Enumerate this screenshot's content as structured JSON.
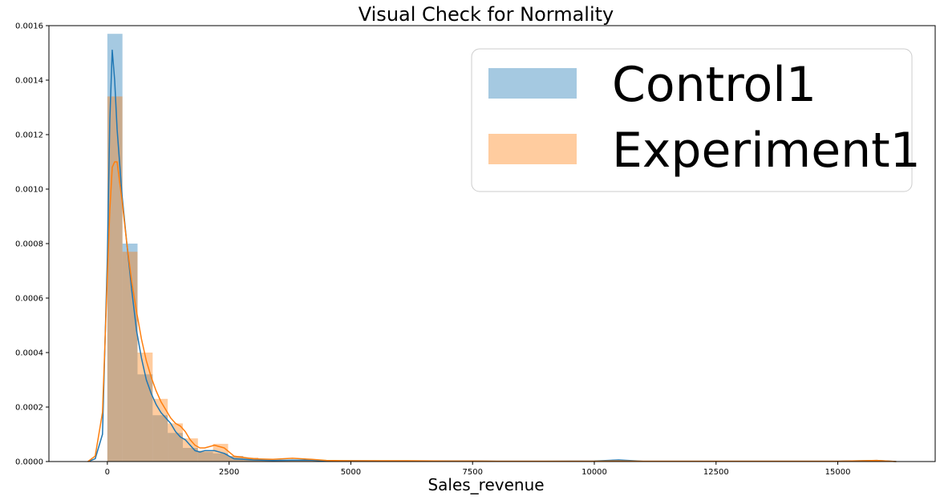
{
  "chart_data": {
    "type": "histogram",
    "title": "Visual Check for Normality",
    "xlabel": "Sales_revenue",
    "ylabel": "",
    "xlim": [
      -1200,
      17000
    ],
    "ylim": [
      0,
      0.0016
    ],
    "xticks": [
      0,
      2500,
      5000,
      7500,
      10000,
      12500,
      15000
    ],
    "yticks": [
      0.0,
      0.0002,
      0.0004,
      0.0006,
      0.0008,
      0.001,
      0.0012,
      0.0014,
      0.0016
    ],
    "ytick_labels": [
      "0.0000",
      "0.0002",
      "0.0004",
      "0.0006",
      "0.0008",
      "0.0010",
      "0.0012",
      "0.0014",
      "0.0016"
    ],
    "bin_width": 310,
    "bin_start": 0,
    "legend_position": "upper-right",
    "grid": false,
    "series": [
      {
        "name": "Control1",
        "color": "#1f77b4",
        "fill_color": "#a6c9e2",
        "hist": [
          0.00157,
          0.0008,
          0.00032,
          0.00017,
          0.000105,
          5e-05,
          3.5e-05,
          3e-05,
          2e-05,
          1.2e-05,
          8e-06,
          5e-06,
          4e-06,
          5e-06,
          3e-06,
          2e-06,
          2e-06,
          2e-06,
          2e-06,
          1e-06,
          1e-06,
          1e-06,
          1e-06,
          1e-06,
          1e-06,
          1e-06,
          1e-06,
          1e-06,
          1e-06,
          1e-06,
          1e-06,
          1e-06,
          1e-06,
          1e-06,
          2e-06,
          1e-06,
          1e-06,
          1e-06,
          1e-06,
          1e-06,
          1e-06,
          1e-06,
          1e-06,
          1e-06,
          1e-06,
          1e-06,
          1e-06,
          1e-06,
          1e-06,
          1e-06,
          1e-06,
          2e-06
        ],
        "kde_x": [
          -400,
          -250,
          -100,
          0,
          50,
          100,
          150,
          200,
          300,
          400,
          500,
          600,
          700,
          800,
          900,
          1000,
          1100,
          1200,
          1300,
          1400,
          1500,
          1600,
          1700,
          1800,
          1900,
          2000,
          2200,
          2400,
          2600,
          2800,
          3000,
          3400,
          3800,
          4200,
          4500,
          5000,
          6000,
          7000,
          7500,
          8000,
          9000,
          10000,
          10500,
          11000,
          12000,
          13000,
          14000,
          15000,
          15800,
          16200
        ],
        "kde_y": [
          0,
          1e-05,
          0.0001,
          0.00075,
          0.00125,
          0.00151,
          0.0014,
          0.00122,
          0.00098,
          0.0008,
          0.00063,
          0.00048,
          0.00038,
          0.0003,
          0.00025,
          0.00021,
          0.00018,
          0.00016,
          0.00014,
          0.00011,
          9e-05,
          8e-05,
          6e-05,
          4e-05,
          3.5e-05,
          4e-05,
          4e-05,
          3e-05,
          1e-05,
          8e-06,
          6e-06,
          4e-06,
          5e-06,
          5e-06,
          2e-06,
          3e-06,
          2e-06,
          2e-06,
          2e-06,
          1e-06,
          1e-06,
          2e-06,
          6e-06,
          1e-06,
          1e-06,
          1e-06,
          1e-06,
          1e-06,
          4e-06,
          0.0
        ]
      },
      {
        "name": "Experiment1",
        "color": "#ff7f0e",
        "fill_color": "#ffc99c",
        "hist": [
          0.00134,
          0.00077,
          0.0004,
          0.00023,
          0.00014,
          8.5e-05,
          4e-05,
          6.5e-05,
          2e-05,
          1.5e-05,
          1e-05,
          6e-06,
          5e-06,
          8e-06,
          3e-06,
          3e-06,
          2e-06,
          2e-06,
          2e-06,
          2e-06,
          1e-06,
          1e-06,
          1e-06,
          1e-06,
          1e-06,
          1e-06,
          1e-06,
          1e-06,
          1e-06,
          1e-06,
          1e-06,
          1e-06,
          1e-06,
          1e-06,
          1e-06,
          1e-06,
          1e-06,
          1e-06,
          1e-06,
          1e-06,
          1e-06,
          1e-06,
          1e-06,
          1e-06,
          1e-06,
          1e-06,
          1e-06,
          1e-06,
          1e-06,
          1e-06,
          1e-06,
          2e-06
        ],
        "kde_x": [
          -400,
          -250,
          -100,
          0,
          50,
          100,
          150,
          200,
          300,
          400,
          500,
          600,
          700,
          800,
          900,
          1000,
          1100,
          1200,
          1300,
          1400,
          1500,
          1600,
          1700,
          1800,
          1900,
          2000,
          2200,
          2400,
          2600,
          2800,
          3000,
          3400,
          3800,
          4200,
          4500,
          5000,
          6000,
          7000,
          7500,
          8000,
          9000,
          10000,
          10500,
          11000,
          12000,
          13000,
          14000,
          15000,
          15800,
          16200
        ],
        "kde_y": [
          0,
          2e-05,
          0.00018,
          0.00068,
          0.00092,
          0.00108,
          0.0011,
          0.0011,
          0.00096,
          0.0008,
          0.00066,
          0.00055,
          0.00045,
          0.00037,
          0.00031,
          0.00026,
          0.00022,
          0.00019,
          0.00016,
          0.00014,
          0.00013,
          0.00011,
          8e-05,
          6e-05,
          5e-05,
          5e-05,
          6e-05,
          5e-05,
          2e-05,
          1.5e-05,
          1e-05,
          8e-06,
          1.2e-05,
          8e-06,
          4e-06,
          3e-06,
          3e-06,
          2e-06,
          2e-06,
          1e-06,
          1e-06,
          1e-06,
          2e-06,
          1e-06,
          1e-06,
          1e-06,
          1e-06,
          1e-06,
          4e-06,
          0.0
        ]
      }
    ]
  }
}
